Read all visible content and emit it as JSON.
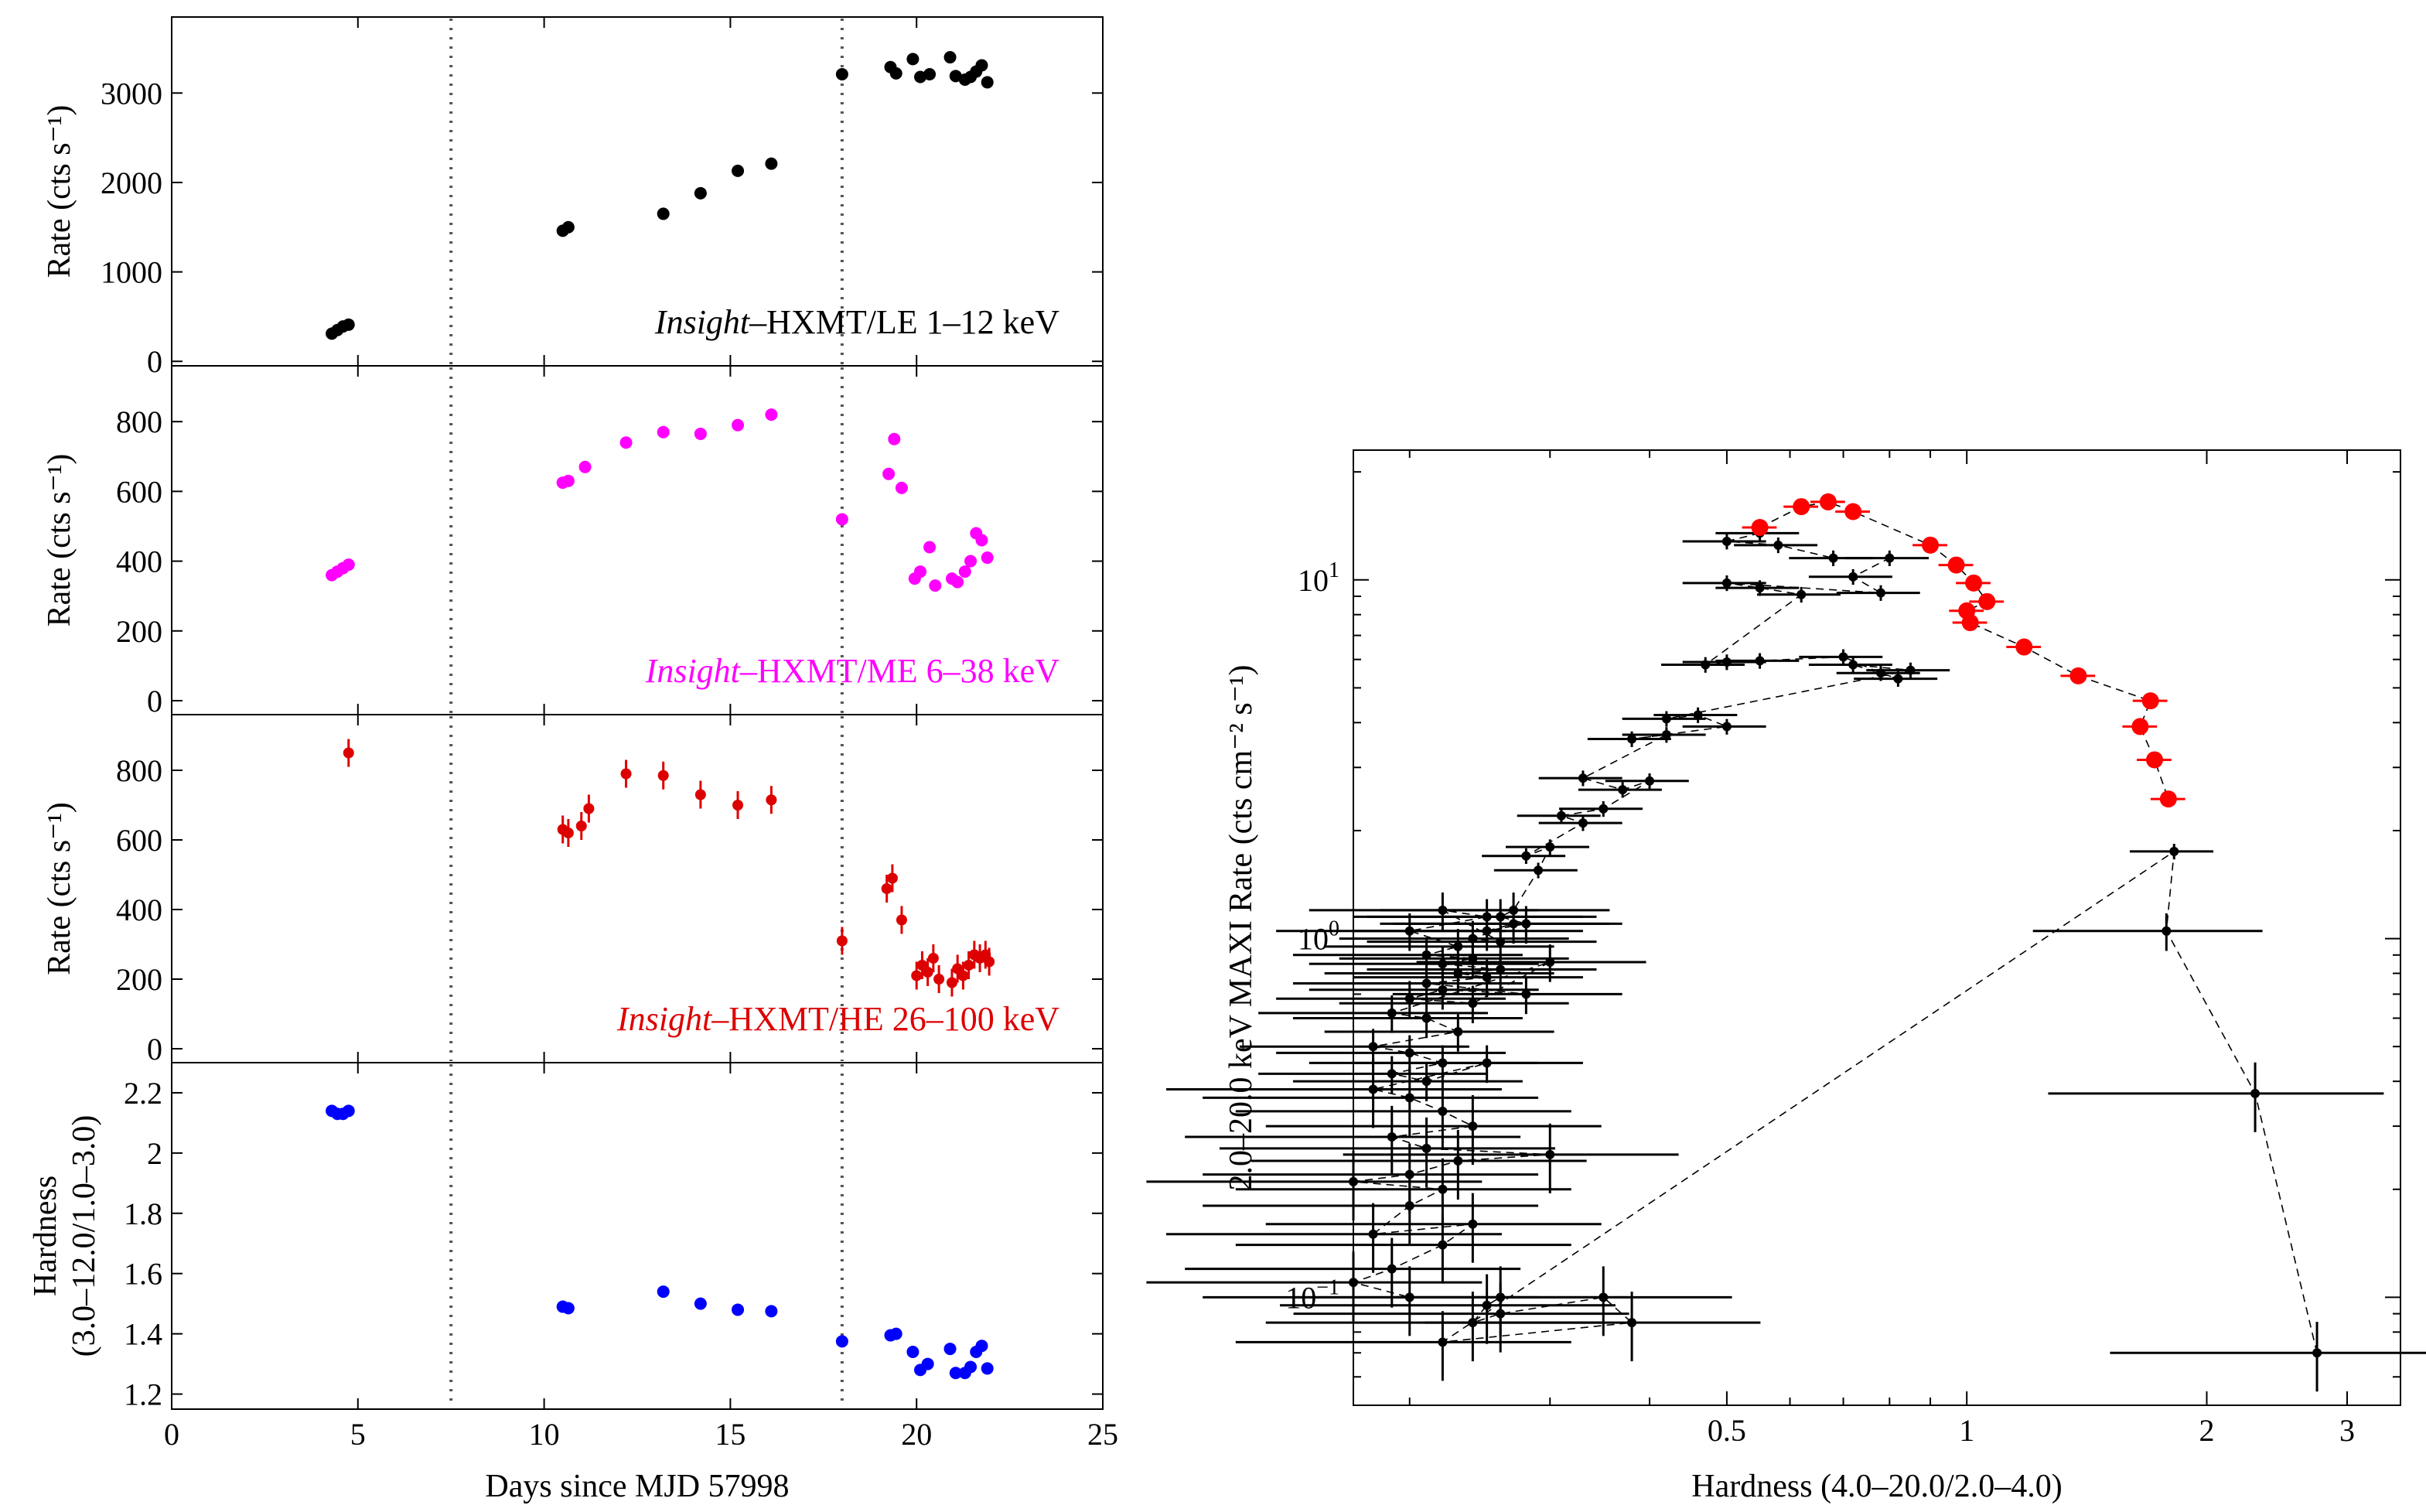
{
  "chart_data": [
    {
      "type": "scatter",
      "panel": "lightcurve-le",
      "ylabel": "Rate (cts s⁻¹)",
      "annotation": {
        "italic": "Insight",
        "rest": "–HXMT/LE 1–12 keV"
      },
      "color": "#000000",
      "ylim": [
        -50,
        3850
      ],
      "yticks": [
        0,
        1000,
        2000,
        3000
      ],
      "x": [
        4.3,
        4.45,
        4.6,
        4.75,
        10.5,
        10.65,
        13.2,
        14.2,
        15.2,
        16.1,
        18.0,
        19.3,
        19.45,
        19.9,
        20.1,
        20.35,
        20.9,
        21.05,
        21.3,
        21.45,
        21.6,
        21.75,
        21.9
      ],
      "y": [
        310,
        350,
        390,
        410,
        1460,
        1500,
        1650,
        1880,
        2130,
        2210,
        3210,
        3290,
        3220,
        3380,
        3180,
        3210,
        3400,
        3190,
        3150,
        3180,
        3240,
        3310,
        3120
      ]
    },
    {
      "type": "scatter",
      "panel": "lightcurve-me",
      "ylabel": "Rate (cts s⁻¹)",
      "annotation": {
        "italic": "Insight",
        "rest": "–HXMT/ME 6–38 keV"
      },
      "color": "#ff00ff",
      "ylim": [
        -40,
        960
      ],
      "yticks": [
        0,
        200,
        400,
        600,
        800
      ],
      "x": [
        4.3,
        4.45,
        4.6,
        4.75,
        10.5,
        10.65,
        11.1,
        12.2,
        13.2,
        14.2,
        15.2,
        16.1,
        18.0,
        19.25,
        19.4,
        19.6,
        19.95,
        20.1,
        20.35,
        20.5,
        20.95,
        21.1,
        21.3,
        21.45,
        21.6,
        21.75,
        21.9
      ],
      "y": [
        360,
        370,
        380,
        390,
        625,
        630,
        670,
        740,
        770,
        765,
        790,
        820,
        520,
        650,
        750,
        610,
        350,
        370,
        440,
        330,
        350,
        340,
        370,
        400,
        480,
        460,
        410
      ]
    },
    {
      "type": "scatter",
      "panel": "lightcurve-he",
      "ylabel": "Rate (cts s⁻¹)",
      "annotation": {
        "italic": "Insight",
        "rest": "–HXMT/HE 26–100 keV"
      },
      "color": "#dd0000",
      "ylim": [
        -40,
        960
      ],
      "yticks": [
        0,
        200,
        400,
        600,
        800
      ],
      "x": [
        4.75,
        10.5,
        10.65,
        11.0,
        11.2,
        12.2,
        13.2,
        14.2,
        15.2,
        16.1,
        18.0,
        19.2,
        19.35,
        19.6,
        20.0,
        20.15,
        20.3,
        20.45,
        20.6,
        20.95,
        21.1,
        21.25,
        21.4,
        21.55,
        21.7,
        21.85,
        21.95
      ],
      "y": [
        850,
        630,
        620,
        640,
        690,
        790,
        785,
        730,
        700,
        715,
        310,
        460,
        490,
        370,
        210,
        240,
        220,
        260,
        200,
        190,
        230,
        210,
        240,
        270,
        260,
        270,
        250
      ]
    },
    {
      "type": "scatter",
      "panel": "hardness",
      "ylabel": "Hardness",
      "ylabel2": "(3.0–12.0/1.0–3.0)",
      "color": "#0000ff",
      "ylim": [
        1.15,
        2.3
      ],
      "yticks": [
        1.2,
        1.4,
        1.6,
        1.8,
        2.0,
        2.2
      ],
      "ytick_labels": [
        "1.2",
        "1.4",
        "1.6",
        "1.8",
        "2",
        "2.2"
      ],
      "x": [
        4.3,
        4.45,
        4.6,
        4.75,
        10.5,
        10.65,
        13.2,
        14.2,
        15.2,
        16.1,
        18.0,
        19.3,
        19.45,
        19.9,
        20.1,
        20.3,
        20.9,
        21.05,
        21.3,
        21.45,
        21.6,
        21.75,
        21.9
      ],
      "y": [
        2.14,
        2.13,
        2.13,
        2.14,
        1.49,
        1.485,
        1.54,
        1.5,
        1.48,
        1.475,
        1.375,
        1.395,
        1.4,
        1.34,
        1.28,
        1.3,
        1.35,
        1.27,
        1.27,
        1.29,
        1.34,
        1.36,
        1.285
      ]
    }
  ],
  "lightcurve_common": {
    "xlabel": "Days since MJD 57998",
    "xlim": [
      0,
      25
    ],
    "xticks": [
      0,
      5,
      10,
      15,
      20,
      25
    ],
    "vlines": [
      7.5,
      18.0
    ]
  },
  "hid": {
    "type": "scatter",
    "xscale": "log",
    "yscale": "log",
    "xlabel": "Hardness (4.0–20.0/2.0–4.0)",
    "ylabel": "2.0–20.0 keV MAXI Rate (cts cm⁻² s⁻¹)",
    "xlim": [
      0.17,
      3.5
    ],
    "ylim": [
      0.05,
      23
    ],
    "xtick_labels": [
      {
        "v": 0.5,
        "t": "0.5"
      },
      {
        "v": 1,
        "t": "1"
      },
      {
        "v": 2,
        "t": "2"
      },
      {
        "v": 3,
        "t": "3"
      }
    ],
    "ytick_labels": [
      {
        "v": 0.1,
        "t": "10",
        "e": "−1"
      },
      {
        "v": 1,
        "t": "10",
        "e": "0"
      },
      {
        "v": 10,
        "t": "10",
        "e": "1"
      }
    ],
    "red_series": {
      "color": "#ff0000",
      "x": [
        0.55,
        0.62,
        0.67,
        0.72,
        0.9,
        0.97,
        1.02,
        1.06,
        1.0,
        1.01,
        1.18,
        1.38,
        1.7,
        1.65,
        1.72,
        1.79
      ],
      "y": [
        14,
        16,
        16.5,
        15.5,
        12.5,
        11,
        9.8,
        8.7,
        8.2,
        7.6,
        6.5,
        5.4,
        4.6,
        3.9,
        3.15,
        2.45
      ]
    },
    "black_series": {
      "color": "#000000",
      "x": [
        0.55,
        0.5,
        0.58,
        0.68,
        0.8,
        0.72,
        0.78,
        0.5,
        0.55,
        0.62,
        0.47,
        0.5,
        0.55,
        0.7,
        0.78,
        0.82,
        0.72,
        0.85,
        0.42,
        0.46,
        0.5,
        0.38,
        0.42,
        0.33,
        0.37,
        0.4,
        0.35,
        0.31,
        0.33,
        0.28,
        0.3,
        0.29,
        0.27,
        0.26,
        0.28,
        0.25,
        0.27,
        0.24,
        0.26,
        0.22,
        0.25,
        0.2,
        0.23,
        0.21,
        0.24,
        0.22,
        0.26,
        0.23,
        0.25,
        0.21,
        0.28,
        0.22,
        0.2,
        0.24,
        0.3,
        0.19,
        0.21,
        0.23,
        0.18,
        0.2,
        0.22,
        0.19,
        0.21,
        0.25,
        0.18,
        0.2,
        0.22,
        0.24,
        0.19,
        0.21,
        0.3,
        0.23,
        0.2,
        0.17,
        0.22,
        0.2,
        0.18,
        0.24,
        0.22,
        0.19,
        0.17,
        0.2,
        0.26,
        0.25,
        0.24,
        0.26,
        0.35,
        0.38,
        0.22,
        1.82,
        1.78,
        2.3,
        2.75
      ],
      "y": [
        13.5,
        12.8,
        12.5,
        11.5,
        11.5,
        10.2,
        9.2,
        9.8,
        9.5,
        9.1,
        5.8,
        5.9,
        5.95,
        6.1,
        5.5,
        5.3,
        5.8,
        5.6,
        4.1,
        4.2,
        3.9,
        3.6,
        3.7,
        2.8,
        2.6,
        2.75,
        2.3,
        2.2,
        2.1,
        1.7,
        1.8,
        1.55,
        1.2,
        1.15,
        1.1,
        1.05,
        1.1,
        1.0,
        0.98,
        1.2,
        1.15,
        1.05,
        0.95,
        0.9,
        0.88,
        0.85,
        0.82,
        0.8,
        0.78,
        0.75,
        0.7,
        0.72,
        0.68,
        0.66,
        0.86,
        0.62,
        0.6,
        0.55,
        0.5,
        0.48,
        0.45,
        0.42,
        0.4,
        0.45,
        0.38,
        0.36,
        0.33,
        0.3,
        0.28,
        0.26,
        0.25,
        0.24,
        0.22,
        0.21,
        0.2,
        0.18,
        0.15,
        0.16,
        0.14,
        0.12,
        0.11,
        0.1,
        0.1,
        0.095,
        0.085,
        0.09,
        0.1,
        0.085,
        0.075,
        1.75,
        1.05,
        0.37,
        0.07
      ]
    }
  }
}
